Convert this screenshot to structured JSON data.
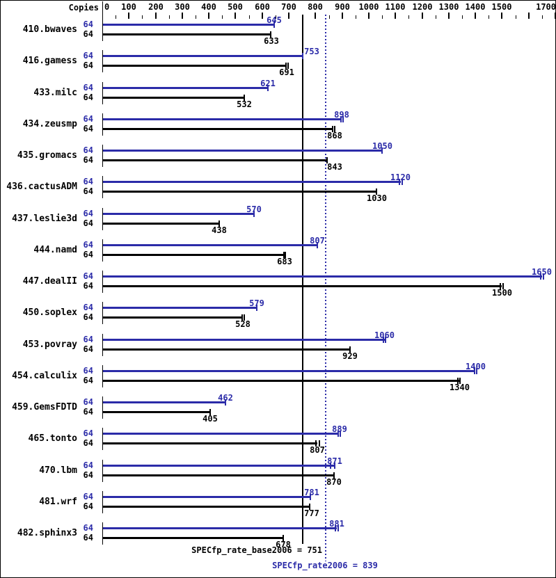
{
  "copies_header": "Copies",
  "colors": {
    "peak_blue": "#2b2ba8",
    "base_black": "#000000",
    "background": "#ffffff",
    "border": "#000000"
  },
  "axis": {
    "min": 0,
    "max": 1700,
    "major_step": 100,
    "minor_step": 50,
    "labeled_ticks": [
      0,
      100,
      200,
      300,
      400,
      500,
      600,
      700,
      800,
      900,
      1000,
      1100,
      1200,
      1300,
      1400,
      1500,
      1700
    ]
  },
  "summary": {
    "base": {
      "text": "SPECfp_rate_base2006 = 751",
      "value": 751
    },
    "peak": {
      "text": "SPECfp_rate2006 = 839",
      "value": 839
    }
  },
  "chart_data": {
    "type": "bar",
    "orientation": "horizontal",
    "title": "",
    "xlabel": "",
    "ylabel": "Copies",
    "xlim": [
      0,
      1700
    ],
    "grid": false,
    "legend_position": "none",
    "categories": [
      "410.bwaves",
      "416.gamess",
      "433.milc",
      "434.zeusmp",
      "435.gromacs",
      "436.cactusADM",
      "437.leslie3d",
      "444.namd",
      "447.dealII",
      "450.soplex",
      "453.povray",
      "454.calculix",
      "459.GemsFDTD",
      "465.tonto",
      "470.lbm",
      "481.wrf",
      "482.sphinx3"
    ],
    "series": [
      {
        "name": "peak (SPECfp_rate2006)",
        "color": "#2b2ba8",
        "copies": [
          64,
          64,
          64,
          64,
          64,
          64,
          64,
          64,
          64,
          64,
          64,
          64,
          64,
          64,
          64,
          64,
          64
        ],
        "values": [
          645,
          753,
          621,
          898,
          1050,
          1120,
          570,
          807,
          1650,
          579,
          1060,
          1400,
          462,
          889,
          871,
          781,
          881
        ],
        "run_marks": [
          [
            645
          ],
          [
            753
          ],
          [
            621
          ],
          [
            895,
            904
          ],
          [
            1050
          ],
          [
            1115,
            1126
          ],
          [
            570
          ],
          [
            807
          ],
          [
            1645,
            1655
          ],
          [
            579
          ],
          [
            1055,
            1063
          ],
          [
            1398,
            1406
          ],
          [
            462
          ],
          [
            884,
            892
          ],
          [
            856,
            871
          ],
          [
            781
          ],
          [
            875,
            884
          ]
        ]
      },
      {
        "name": "base (SPECfp_rate_base2006)",
        "color": "#000000",
        "copies": [
          64,
          64,
          64,
          64,
          64,
          64,
          64,
          64,
          64,
          64,
          64,
          64,
          64,
          64,
          64,
          64,
          64
        ],
        "values": [
          633,
          691,
          532,
          868,
          843,
          1030,
          438,
          683,
          1500,
          528,
          929,
          1340,
          405,
          807,
          870,
          777,
          678
        ],
        "run_marks": [
          [
            633
          ],
          [
            689,
            696
          ],
          [
            532
          ],
          [
            865,
            873
          ],
          [
            843
          ],
          [
            1030
          ],
          [
            438
          ],
          [
            681,
            688
          ],
          [
            1495,
            1503
          ],
          [
            525,
            532
          ],
          [
            929
          ],
          [
            1335,
            1343
          ],
          [
            405
          ],
          [
            801,
            814
          ],
          [
            870
          ],
          [
            777
          ],
          [
            678
          ]
        ]
      }
    ],
    "reference_lines": [
      {
        "label": "SPECfp_rate_base2006 = 751",
        "value": 751,
        "style": "solid",
        "color": "#000000"
      },
      {
        "label": "SPECfp_rate2006 = 839",
        "value": 839,
        "style": "dotted",
        "color": "#2b2ba8"
      }
    ]
  }
}
